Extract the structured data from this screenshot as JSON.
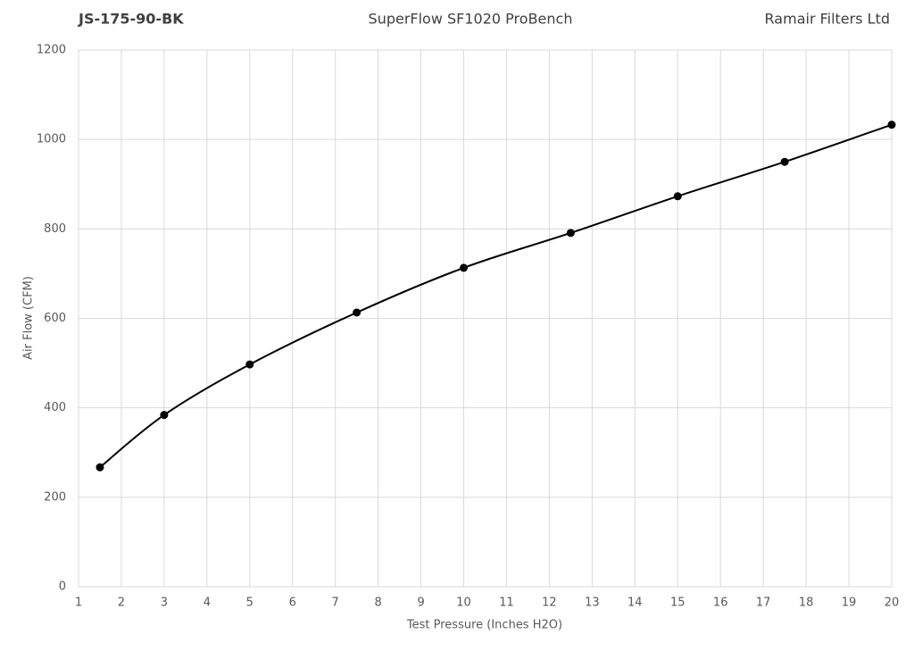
{
  "chart_data": {
    "type": "line",
    "header_left": "JS-175-90-BK",
    "title": "SuperFlow SF1020 ProBench",
    "header_right": "Ramair Filters Ltd",
    "x_label": "Test Pressure (Inches H2O)",
    "y_label": "Air Flow (CFM)",
    "x": [
      1.5,
      3,
      5,
      7.5,
      10,
      12.5,
      15,
      17.5,
      20
    ],
    "series": [
      {
        "color": "#000000",
        "values": [
          267,
          384,
          497,
          613,
          713,
          791,
          873,
          950,
          1033
        ]
      }
    ],
    "xlim": [
      1,
      20
    ],
    "xticks": [
      1,
      2,
      3,
      4,
      5,
      6,
      7,
      8,
      9,
      10,
      11,
      12,
      13,
      14,
      15,
      16,
      17,
      18,
      19,
      20
    ],
    "ylim": [
      0,
      1200
    ],
    "yticks": [
      0,
      200,
      400,
      600,
      800,
      1000,
      1200
    ],
    "grid": true,
    "smooth": true,
    "markers": true
  }
}
